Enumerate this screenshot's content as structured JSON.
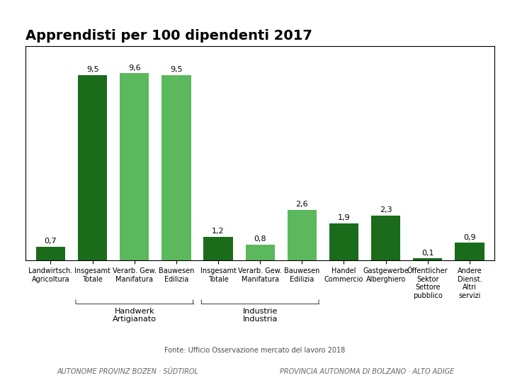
{
  "chart_data": {
    "type": "bar",
    "title": "Apprendisti per 100 dipendenti 2017",
    "categories": [
      "Landwirtsch.\nAgricoltura",
      "Insgesamt\nTotale",
      "Verarb. Gew.\nManifatura",
      "Bauwesen\nEdilizia",
      "Insgesamt\nTotale",
      "Verarb. Gew.\nManifatura",
      "Bauwesen\nEdilizia",
      "Handel\nCommercio",
      "Gastgewerbe\nAlberghiero",
      "Öffentlicher\nSektor\nSettore\npubblico",
      "Andere\nDienst.\nAltri\nservizi"
    ],
    "values": [
      0.7,
      9.5,
      9.6,
      9.5,
      1.2,
      0.8,
      2.6,
      1.9,
      2.3,
      0.1,
      0.9
    ],
    "value_labels": [
      "0,7",
      "9,5",
      "9,6",
      "9,5",
      "1,2",
      "0,8",
      "2,6",
      "1,9",
      "2,3",
      "0,1",
      "0,9"
    ],
    "colors": [
      "#1a6b1a",
      "#1a6b1a",
      "#5cb85c",
      "#5cb85c",
      "#1a6b1a",
      "#5cb85c",
      "#5cb85c",
      "#1a6b1a",
      "#1a6b1a",
      "#1a6b1a",
      "#1a6b1a"
    ],
    "groups": [
      {
        "label": "Handwerk\nArtigianato",
        "bar_indices": [
          1,
          2,
          3
        ]
      },
      {
        "label": "Industrie\nIndustria",
        "bar_indices": [
          4,
          5,
          6
        ]
      }
    ],
    "annotations": [
      "Fonte: Ufficio Osservazione mercato del lavoro 2018",
      "AUTONOME PROVINZ BOZEN · SÜDTIROL",
      "PROVINCIA AUTONOMA DI BOLZANO · ALTO ADIGE"
    ],
    "ylim": [
      0,
      11
    ],
    "yticks": [],
    "tick_labels": "x",
    "data_labels": true,
    "grid": false
  }
}
